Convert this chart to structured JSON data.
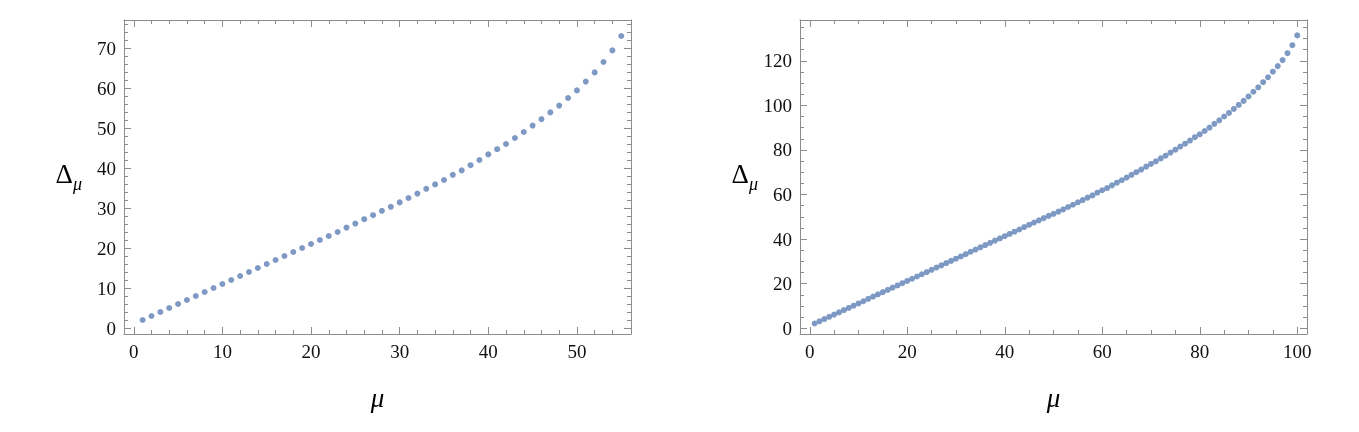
{
  "chart_data": [
    {
      "type": "scatter",
      "xlabel": "μ",
      "ylabel": "Δ$_{μ}$",
      "color": "#5e81b5",
      "marker": "circle",
      "x": [
        1,
        2,
        3,
        4,
        5,
        6,
        7,
        8,
        9,
        10,
        11,
        12,
        13,
        14,
        15,
        16,
        17,
        18,
        19,
        20,
        21,
        22,
        23,
        24,
        25,
        26,
        27,
        28,
        29,
        30,
        31,
        32,
        33,
        34,
        35,
        36,
        37,
        38,
        39,
        40,
        41,
        42,
        43,
        44,
        45,
        46,
        47,
        48,
        49,
        50,
        51,
        52,
        53,
        54,
        55
      ],
      "values": [
        2.1,
        3.1,
        4.1,
        5.1,
        6.1,
        7.1,
        8.1,
        9.1,
        10.1,
        11.1,
        12.1,
        13.1,
        14.1,
        15.1,
        16.1,
        17.1,
        18.1,
        19.1,
        20.1,
        21.1,
        22.1,
        23.1,
        24.1,
        25.2,
        26.2,
        27.3,
        28.3,
        29.4,
        30.4,
        31.5,
        32.6,
        33.7,
        34.9,
        36.0,
        37.1,
        38.4,
        39.5,
        40.8,
        42.1,
        43.5,
        44.8,
        46.1,
        47.6,
        49.1,
        50.7,
        52.3,
        54.0,
        55.7,
        57.6,
        59.5,
        61.7,
        64.0,
        66.6,
        69.5,
        73.1
      ],
      "xlim": [
        -1.1,
        56.1
      ],
      "ylim": [
        -1.4,
        77.1
      ],
      "xticks": [
        0,
        {
          "value": 2,
          "label": null
        },
        {
          "value": 4,
          "label": null
        },
        {
          "value": 6,
          "label": null
        },
        {
          "value": 8,
          "label": null
        },
        10,
        {
          "value": 12,
          "label": null
        },
        {
          "value": 14,
          "label": null
        },
        {
          "value": 16,
          "label": null
        },
        {
          "value": 18,
          "label": null
        },
        20,
        {
          "value": 22,
          "label": null
        },
        {
          "value": 24,
          "label": null
        },
        {
          "value": 26,
          "label": null
        },
        {
          "value": 28,
          "label": null
        },
        30,
        {
          "value": 32,
          "label": null
        },
        {
          "value": 34,
          "label": null
        },
        {
          "value": 36,
          "label": null
        },
        {
          "value": 38,
          "label": null
        },
        40,
        {
          "value": 42,
          "label": null
        },
        {
          "value": 44,
          "label": null
        },
        {
          "value": 46,
          "label": null
        },
        {
          "value": 48,
          "label": null
        },
        50,
        {
          "value": 52,
          "label": null
        },
        {
          "value": 54,
          "label": null
        }
      ],
      "yticks": [
        0,
        {
          "value": 2,
          "label": null
        },
        {
          "value": 4,
          "label": null
        },
        {
          "value": 6,
          "label": null
        },
        {
          "value": 8,
          "label": null
        },
        10,
        {
          "value": 12,
          "label": null
        },
        {
          "value": 14,
          "label": null
        },
        {
          "value": 16,
          "label": null
        },
        {
          "value": 18,
          "label": null
        },
        20,
        {
          "value": 22,
          "label": null
        },
        {
          "value": 24,
          "label": null
        },
        {
          "value": 26,
          "label": null
        },
        {
          "value": 28,
          "label": null
        },
        30,
        {
          "value": 32,
          "label": null
        },
        {
          "value": 34,
          "label": null
        },
        {
          "value": 36,
          "label": null
        },
        {
          "value": 38,
          "label": null
        },
        40,
        {
          "value": 42,
          "label": null
        },
        {
          "value": 44,
          "label": null
        },
        {
          "value": 46,
          "label": null
        },
        {
          "value": 48,
          "label": null
        },
        50,
        {
          "value": 52,
          "label": null
        },
        {
          "value": 54,
          "label": null
        },
        {
          "value": 56,
          "label": null
        },
        {
          "value": 58,
          "label": null
        },
        60,
        {
          "value": 62,
          "label": null
        },
        {
          "value": 64,
          "label": null
        },
        {
          "value": 66,
          "label": null
        },
        {
          "value": 68,
          "label": null
        },
        70,
        {
          "value": 72,
          "label": null
        },
        {
          "value": 74,
          "label": null
        },
        {
          "value": 76,
          "label": null
        }
      ]
    },
    {
      "type": "scatter",
      "xlabel": "μ",
      "ylabel": "Δ$_{μ}$",
      "color": "#5e81b5",
      "marker": "circle",
      "x": [
        1,
        2,
        3,
        4,
        5,
        6,
        7,
        8,
        9,
        10,
        11,
        12,
        13,
        14,
        15,
        16,
        17,
        18,
        19,
        20,
        21,
        22,
        23,
        24,
        25,
        26,
        27,
        28,
        29,
        30,
        31,
        32,
        33,
        34,
        35,
        36,
        37,
        38,
        39,
        40,
        41,
        42,
        43,
        44,
        45,
        46,
        47,
        48,
        49,
        50,
        51,
        52,
        53,
        54,
        55,
        56,
        57,
        58,
        59,
        60,
        61,
        62,
        63,
        64,
        65,
        66,
        67,
        68,
        69,
        70,
        71,
        72,
        73,
        74,
        75,
        76,
        77,
        78,
        79,
        80,
        81,
        82,
        83,
        84,
        85,
        86,
        87,
        88,
        89,
        90,
        91,
        92,
        93,
        94,
        95,
        96,
        97,
        98,
        99,
        100
      ],
      "values": [
        2.1,
        3.1,
        4.1,
        5.1,
        6.1,
        7.1,
        8.1,
        9.1,
        10.1,
        11.1,
        12.1,
        13.2,
        14.2,
        15.2,
        16.2,
        17.2,
        18.2,
        19.2,
        20.2,
        21.2,
        22.2,
        23.2,
        24.2,
        25.2,
        26.2,
        27.2,
        28.2,
        29.2,
        30.2,
        31.2,
        32.2,
        33.2,
        34.3,
        35.3,
        36.3,
        37.3,
        38.3,
        39.3,
        40.3,
        41.3,
        42.3,
        43.3,
        44.3,
        45.4,
        46.4,
        47.4,
        48.4,
        49.4,
        50.4,
        51.3,
        52.3,
        53.3,
        54.4,
        55.4,
        56.5,
        57.5,
        58.6,
        59.6,
        60.8,
        61.9,
        62.9,
        64.1,
        65.3,
        66.4,
        67.6,
        68.8,
        70.0,
        71.2,
        72.5,
        73.7,
        74.9,
        76.2,
        77.4,
        78.8,
        80.1,
        81.5,
        82.8,
        84.2,
        85.7,
        87.0,
        88.5,
        90.0,
        91.7,
        93.3,
        95.0,
        96.6,
        98.4,
        100.2,
        102.0,
        104.0,
        106.1,
        108.1,
        110.4,
        112.6,
        115.1,
        117.6,
        120.3,
        123.4,
        127.0,
        131.4
      ],
      "xlim": [
        -2,
        102
      ],
      "ylim": [
        -2.6,
        138.3
      ],
      "xticks": [
        0,
        {
          "value": 5,
          "label": null
        },
        {
          "value": 10,
          "label": null
        },
        {
          "value": 15,
          "label": null
        },
        20,
        {
          "value": 25,
          "label": null
        },
        {
          "value": 30,
          "label": null
        },
        {
          "value": 35,
          "label": null
        },
        40,
        {
          "value": 45,
          "label": null
        },
        {
          "value": 50,
          "label": null
        },
        {
          "value": 55,
          "label": null
        },
        60,
        {
          "value": 65,
          "label": null
        },
        {
          "value": 70,
          "label": null
        },
        {
          "value": 75,
          "label": null
        },
        80,
        {
          "value": 85,
          "label": null
        },
        {
          "value": 90,
          "label": null
        },
        {
          "value": 95,
          "label": null
        },
        100
      ],
      "yticks": [
        0,
        {
          "value": 5,
          "label": null
        },
        {
          "value": 10,
          "label": null
        },
        {
          "value": 15,
          "label": null
        },
        20,
        {
          "value": 25,
          "label": null
        },
        {
          "value": 30,
          "label": null
        },
        {
          "value": 35,
          "label": null
        },
        40,
        {
          "value": 45,
          "label": null
        },
        {
          "value": 50,
          "label": null
        },
        {
          "value": 55,
          "label": null
        },
        60,
        {
          "value": 65,
          "label": null
        },
        {
          "value": 70,
          "label": null
        },
        {
          "value": 75,
          "label": null
        },
        80,
        {
          "value": 85,
          "label": null
        },
        {
          "value": 90,
          "label": null
        },
        {
          "value": 95,
          "label": null
        },
        100,
        {
          "value": 105,
          "label": null
        },
        {
          "value": 110,
          "label": null
        },
        {
          "value": 115,
          "label": null
        },
        120,
        {
          "value": 125,
          "label": null
        },
        {
          "value": 130,
          "label": null
        },
        {
          "value": 135,
          "label": null
        }
      ]
    }
  ]
}
